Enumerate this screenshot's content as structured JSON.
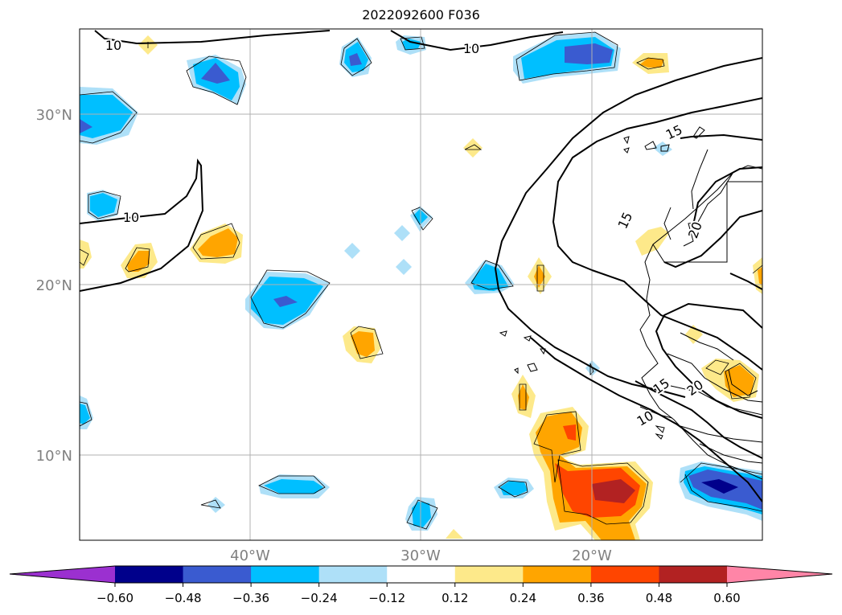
{
  "map": {
    "title": "2022092600 F036",
    "lat_labels": [
      "30°N",
      "20°N",
      "10°N"
    ],
    "lon_labels": [
      "40°W",
      "30°W",
      "20°W"
    ],
    "contour_labels": [
      "10",
      "10",
      "10",
      "15",
      "15",
      "15",
      "20",
      "10",
      "20"
    ],
    "label_color": "#808080",
    "gridline_color": "#b0b0b0",
    "contour_color": "#000000"
  },
  "colorbar": {
    "ticks": [
      "−0.60",
      "−0.48",
      "−0.36",
      "−0.24",
      "−0.12",
      "0.12",
      "0.24",
      "0.36",
      "0.48",
      "0.60"
    ],
    "colors": [
      "#9b30d0",
      "#00008b",
      "#3a5bd0",
      "#00bfff",
      "#aee0f8",
      "#ffffff",
      "#fde98a",
      "#ffa500",
      "#ff4500",
      "#b22222",
      "#ff85a7"
    ]
  }
}
